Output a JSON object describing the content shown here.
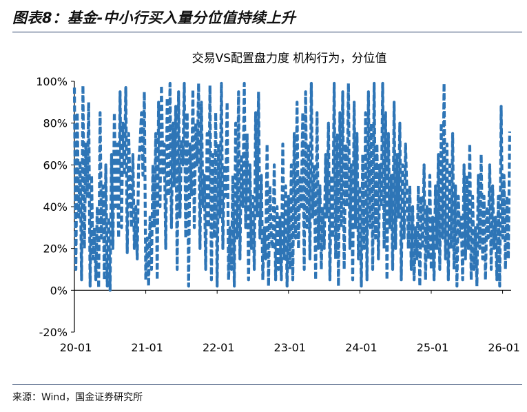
{
  "figure": {
    "title": "图表8：基金-中小行买入量分位值持续上升",
    "source": "来源：Wind，国金证券研究所"
  },
  "chart_data": {
    "type": "line",
    "title": "交易VS配置盘力度 机构行为，分位值",
    "line_style": "dashed",
    "series_color": "#2e75b6",
    "grid": false,
    "legend": "none",
    "ylim": [
      -0.2,
      1.0
    ],
    "xlim": [
      "2020-01",
      "2026-02"
    ],
    "y_ticks": [
      "100%",
      "80%",
      "60%",
      "40%",
      "20%",
      "0%",
      "-20%"
    ],
    "y_tick_values": [
      1.0,
      0.8,
      0.6,
      0.4,
      0.2,
      0.0,
      -0.2
    ],
    "x_ticks": [
      "20-01",
      "21-01",
      "22-01",
      "23-01",
      "24-01",
      "25-01",
      "26-01"
    ],
    "x_tick_values": [
      2020.0,
      2021.0,
      2022.0,
      2023.0,
      2024.0,
      2025.0,
      2026.0
    ],
    "series": [
      {
        "x": [
          2020.0,
          2020.02,
          2020.04,
          2020.06,
          2020.08,
          2020.1,
          2020.12,
          2020.14,
          2020.16,
          2020.18,
          2020.2,
          2020.22,
          2020.24,
          2020.26,
          2020.28,
          2020.3,
          2020.32,
          2020.34,
          2020.36,
          2020.38,
          2020.4,
          2020.42,
          2020.44,
          2020.46,
          2020.48,
          2020.5,
          2020.52,
          2020.54,
          2020.56,
          2020.58,
          2020.6,
          2020.62,
          2020.64,
          2020.66,
          2020.68,
          2020.7,
          2020.72,
          2020.74,
          2020.76,
          2020.78,
          2020.8,
          2020.82,
          2020.84,
          2020.86,
          2020.88,
          2020.9,
          2020.92,
          2020.94,
          2020.96,
          2020.98,
          2021.0,
          2021.02,
          2021.04,
          2021.06,
          2021.08,
          2021.1,
          2021.12,
          2021.14,
          2021.16,
          2021.18,
          2021.2,
          2021.22,
          2021.24,
          2021.26,
          2021.28,
          2021.3,
          2021.32,
          2021.34,
          2021.36,
          2021.38,
          2021.4,
          2021.42,
          2021.44,
          2021.46,
          2021.48,
          2021.5,
          2021.52,
          2021.54,
          2021.56,
          2021.58,
          2021.6,
          2021.62,
          2021.64,
          2021.66,
          2021.68,
          2021.7,
          2021.72,
          2021.74,
          2021.76,
          2021.78,
          2021.8,
          2021.82,
          2021.84,
          2021.86,
          2021.88,
          2021.9,
          2021.92,
          2021.94,
          2021.96,
          2021.98,
          2022.0,
          2022.02,
          2022.04,
          2022.06,
          2022.08,
          2022.1,
          2022.12,
          2022.14,
          2022.16,
          2022.18,
          2022.2,
          2022.22,
          2022.24,
          2022.26,
          2022.28,
          2022.3,
          2022.32,
          2022.34,
          2022.36,
          2022.38,
          2022.4,
          2022.42,
          2022.44,
          2022.46,
          2022.48,
          2022.5,
          2022.52,
          2022.54,
          2022.56,
          2022.58,
          2022.6,
          2022.62,
          2022.64,
          2022.66,
          2022.68,
          2022.7,
          2022.72,
          2022.74,
          2022.76,
          2022.78,
          2022.8,
          2022.82,
          2022.84,
          2022.86,
          2022.88,
          2022.9,
          2022.92,
          2022.94,
          2022.96,
          2022.98,
          2023.0,
          2023.02,
          2023.04,
          2023.06,
          2023.08,
          2023.1,
          2023.12,
          2023.14,
          2023.16,
          2023.18,
          2023.2,
          2023.22,
          2023.24,
          2023.26,
          2023.28,
          2023.3,
          2023.32,
          2023.34,
          2023.36,
          2023.38,
          2023.4,
          2023.42,
          2023.44,
          2023.46,
          2023.48,
          2023.5,
          2023.52,
          2023.54,
          2023.56,
          2023.58,
          2023.6,
          2023.62,
          2023.64,
          2023.66,
          2023.68,
          2023.7,
          2023.72,
          2023.74,
          2023.76,
          2023.78,
          2023.8,
          2023.82,
          2023.84,
          2023.86,
          2023.88,
          2023.9,
          2023.92,
          2023.94,
          2023.96,
          2023.98,
          2024.0,
          2024.02,
          2024.04,
          2024.06,
          2024.08,
          2024.1,
          2024.12,
          2024.14,
          2024.16,
          2024.18,
          2024.2,
          2024.22,
          2024.24,
          2024.26,
          2024.28,
          2024.3,
          2024.32,
          2024.34,
          2024.36,
          2024.38,
          2024.4,
          2024.42,
          2024.44,
          2024.46,
          2024.48,
          2024.5,
          2024.52,
          2024.54,
          2024.56,
          2024.58,
          2024.6,
          2024.62,
          2024.64,
          2024.66,
          2024.68,
          2024.7,
          2024.72,
          2024.74,
          2024.76,
          2024.78,
          2024.8,
          2024.82,
          2024.84,
          2024.86,
          2024.88,
          2024.9,
          2024.92,
          2024.94,
          2024.96,
          2024.98,
          2025.0,
          2025.02,
          2025.04,
          2025.06,
          2025.08,
          2025.1,
          2025.12,
          2025.14,
          2025.16,
          2025.18,
          2025.2,
          2025.22,
          2025.24,
          2025.26,
          2025.28,
          2025.3,
          2025.32,
          2025.34,
          2025.36,
          2025.38,
          2025.4,
          2025.42,
          2025.44,
          2025.46,
          2025.48,
          2025.5,
          2025.52,
          2025.54,
          2025.56,
          2025.58,
          2025.6,
          2025.62,
          2025.64,
          2025.66,
          2025.68,
          2025.7,
          2025.72,
          2025.74,
          2025.76,
          2025.78,
          2025.8,
          2025.82,
          2025.84,
          2025.86,
          2025.88,
          2025.9,
          2025.92,
          2025.94,
          2025.96,
          2025.98,
          2026.0,
          2026.02,
          2026.04,
          2026.06,
          2026.08,
          2026.1
        ],
        "y": [
          0.97,
          0.1,
          0.85,
          0.35,
          0.62,
          0.05,
          0.98,
          0.2,
          0.7,
          0.45,
          0.9,
          0.02,
          0.55,
          0.15,
          0.3,
          0.05,
          0.4,
          0.01,
          0.85,
          0.25,
          0.5,
          0.05,
          0.6,
          0.02,
          0.35,
          0.0,
          0.65,
          0.2,
          0.85,
          0.4,
          0.7,
          0.25,
          0.95,
          0.3,
          0.8,
          0.55,
          0.97,
          0.18,
          0.75,
          0.5,
          0.3,
          0.65,
          0.2,
          0.4,
          0.15,
          0.6,
          0.7,
          0.85,
          0.55,
          0.95,
          0.05,
          0.25,
          0.02,
          0.35,
          0.1,
          0.6,
          0.3,
          0.75,
          0.05,
          0.9,
          0.4,
          0.98,
          0.55,
          0.7,
          0.2,
          0.92,
          0.45,
          0.99,
          0.3,
          0.8,
          0.5,
          0.88,
          0.1,
          0.95,
          0.35,
          0.72,
          0.6,
          0.99,
          0.25,
          0.85,
          0.02,
          0.7,
          0.45,
          0.96,
          0.3,
          0.8,
          0.6,
          0.99,
          0.2,
          0.9,
          0.4,
          0.55,
          0.1,
          0.75,
          0.3,
          0.98,
          0.05,
          0.65,
          0.25,
          0.85,
          0.02,
          0.7,
          0.35,
          0.99,
          0.2,
          0.6,
          0.45,
          0.9,
          0.05,
          0.3,
          0.1,
          0.55,
          0.02,
          0.8,
          0.25,
          0.95,
          0.15,
          0.65,
          0.4,
          0.99,
          0.3,
          0.75,
          0.05,
          0.6,
          0.2,
          0.45,
          0.1,
          0.85,
          0.35,
          0.95,
          0.25,
          0.55,
          0.05,
          0.3,
          0.15,
          0.7,
          0.02,
          0.5,
          0.25,
          0.2,
          0.6,
          0.05,
          0.4,
          0.1,
          0.35,
          0.05,
          0.7,
          0.15,
          0.5,
          0.02,
          0.45,
          0.1,
          0.6,
          0.05,
          0.75,
          0.25,
          0.9,
          0.2,
          0.55,
          0.4,
          0.85,
          0.1,
          0.95,
          0.3,
          0.7,
          0.15,
          0.99,
          0.35,
          0.6,
          0.05,
          0.85,
          0.2,
          0.5,
          0.1,
          0.4,
          0.2,
          0.65,
          0.35,
          0.8,
          0.05,
          0.55,
          0.25,
          0.99,
          0.15,
          0.75,
          0.02,
          0.85,
          0.3,
          0.95,
          0.1,
          0.7,
          0.4,
          0.99,
          0.2,
          0.6,
          0.05,
          0.9,
          0.3,
          0.75,
          0.15,
          0.5,
          0.02,
          0.65,
          0.2,
          0.85,
          0.05,
          0.95,
          0.3,
          0.8,
          0.1,
          0.99,
          0.25,
          0.7,
          0.15,
          0.6,
          0.4,
          0.99,
          0.2,
          0.85,
          0.05,
          0.75,
          0.3,
          0.55,
          0.1,
          0.9,
          0.2,
          0.65,
          0.35,
          0.8,
          0.05,
          0.6,
          0.25,
          0.7,
          0.45,
          0.2,
          0.5,
          0.1,
          0.4,
          0.05,
          0.3,
          0.15,
          0.5,
          0.02,
          0.45,
          0.2,
          0.6,
          0.05,
          0.4,
          0.15,
          0.55,
          0.1,
          0.35,
          0.05,
          0.5,
          0.2,
          0.65,
          0.1,
          0.8,
          0.25,
          0.99,
          0.15,
          0.7,
          0.05,
          0.6,
          0.2,
          0.75,
          0.1,
          0.5,
          0.02,
          0.45,
          0.25,
          0.35,
          0.05,
          0.6,
          0.15,
          0.55,
          0.2,
          0.7,
          0.05,
          0.45,
          0.1,
          0.3,
          0.02,
          0.55,
          0.2,
          0.65,
          0.15,
          0.45,
          0.05,
          0.4,
          0.25,
          0.6,
          0.1,
          0.5,
          0.2,
          0.35,
          0.05,
          0.45,
          0.02,
          0.88,
          0.25,
          0.55,
          0.1,
          0.45,
          0.15,
          0.76
        ]
      }
    ]
  }
}
